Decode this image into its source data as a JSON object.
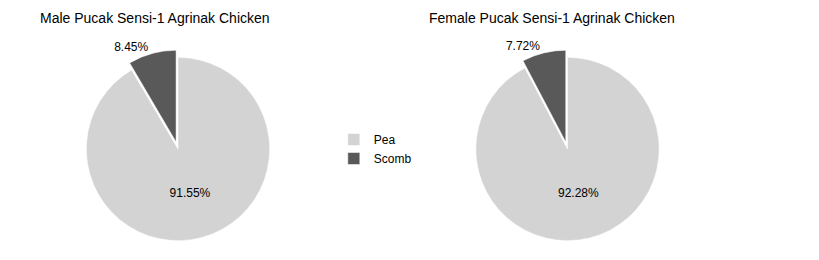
{
  "chart_data": [
    {
      "type": "pie",
      "title": "Male Pucak Sensi-1 Agrinak Chicken",
      "categories": [
        "Pea",
        "Scomb"
      ],
      "values": [
        91.55,
        8.45
      ],
      "value_labels": [
        "91.55%",
        "8.45%"
      ],
      "data_labels": true,
      "colors": [
        "#d3d3d3",
        "#595959"
      ],
      "legend": "right"
    },
    {
      "type": "pie",
      "title": "Female Pucak Sensi-1 Agrinak Chicken",
      "categories": [
        "Pea",
        "Scomb"
      ],
      "values": [
        92.28,
        7.72
      ],
      "value_labels": [
        "92.28%",
        "7.72%"
      ],
      "data_labels": true,
      "colors": [
        "#d3d3d3",
        "#595959"
      ],
      "legend": "right"
    }
  ]
}
